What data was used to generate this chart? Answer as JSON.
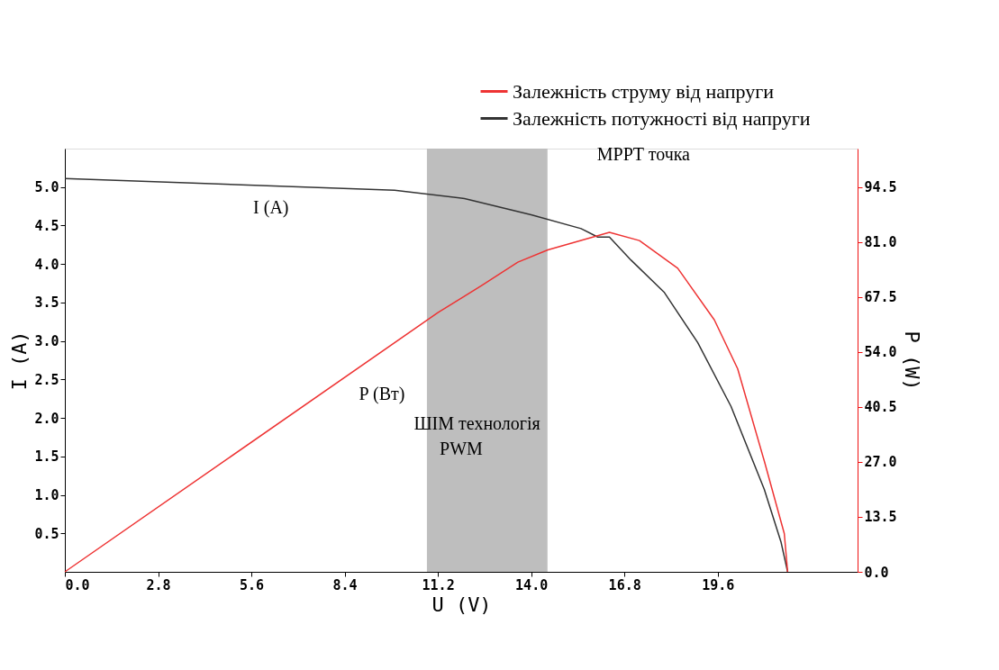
{
  "chart_data": {
    "type": "line",
    "xlabel": "U (V)",
    "ylabel": "I (A)",
    "y2label": "P (W)",
    "xlim": [
      0,
      23.8
    ],
    "ylim": [
      0,
      5.5
    ],
    "y2lim": [
      0,
      104
    ],
    "xticks": [
      {
        "value": 0,
        "label": "0.0"
      },
      2.8,
      5.6,
      8.4,
      11.2,
      {
        "value": 14,
        "label": "14.0"
      },
      16.8,
      19.6
    ],
    "yticks": [
      0.5,
      {
        "value": 1,
        "label": "1.0"
      },
      1.5,
      {
        "value": 2,
        "label": "2.0"
      },
      2.5,
      {
        "value": 3,
        "label": "3.0"
      },
      3.5,
      {
        "value": 4,
        "label": "4.0"
      },
      4.5,
      {
        "value": 5,
        "label": "5.0"
      }
    ],
    "y2ticks": [
      {
        "value": 0,
        "label": "0.0"
      },
      13.5,
      {
        "value": 27,
        "label": "27.0"
      },
      40.5,
      {
        "value": 54,
        "label": "54.0"
      },
      67.5,
      {
        "value": 81,
        "label": "81.0"
      },
      94.5
    ],
    "legend": "top right",
    "grid": false,
    "marker": "none",
    "line_style": "solid",
    "series": [
      {
        "name": "Залежність струму від напруги",
        "color": "#ee3333",
        "axis": "y2",
        "x": [
          0,
          11.2,
          12.5,
          13.6,
          14.5,
          16.35,
          17.25,
          18.4,
          19.5,
          20.2,
          21.0,
          21.6,
          21.7
        ],
        "values": [
          0,
          63.7,
          70.3,
          76.1,
          79.1,
          83.4,
          81.4,
          74.6,
          61.9,
          49.9,
          27.2,
          9.4,
          0
        ]
      },
      {
        "name": "Залежність потужності від напруги",
        "color": "#333333",
        "axis": "y",
        "x": [
          0,
          9.9,
          12,
          14,
          15.5,
          16,
          16.35,
          17,
          18,
          19,
          20,
          21,
          21.5,
          21.7
        ],
        "values": [
          5.11,
          4.96,
          4.85,
          4.64,
          4.46,
          4.35,
          4.35,
          4.05,
          3.63,
          2.98,
          2.15,
          1.07,
          0.39,
          0
        ]
      }
    ],
    "bands": [
      {
        "axis": "x",
        "from": 10.87,
        "to": 14.49,
        "color": "#bebebe"
      }
    ],
    "annotations": [
      "I (A)",
      "P (Вт)",
      "ШІМ технологія",
      "PWM",
      "MPPT точка"
    ]
  }
}
